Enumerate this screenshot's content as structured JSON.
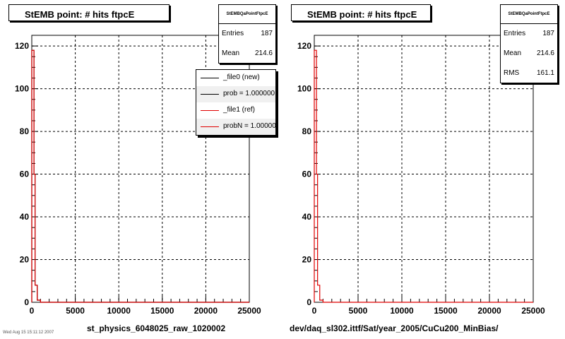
{
  "panels": [
    {
      "title": "StEMB point: # hits ftpcE",
      "stats": {
        "name": "StEMBQaPointFtpcE",
        "rows": [
          {
            "label": "Entries",
            "value": "187"
          },
          {
            "label": "Mean",
            "value": "214.6"
          }
        ]
      },
      "xtitle": "st_physics_6048025_raw_1020002",
      "legend": [
        {
          "label": "_file0 (new)",
          "color": "#000000"
        },
        {
          "label": "prob = 1.000000",
          "color": "#000000"
        },
        {
          "label": "_file1 (ref)",
          "color": "#e00000"
        },
        {
          "label": "probN = 1.000000",
          "color": "#e00000"
        }
      ]
    },
    {
      "title": "StEMB point: # hits ftpcE",
      "stats": {
        "name": "StEMBQaPointFtpcE",
        "rows": [
          {
            "label": "Entries",
            "value": "187"
          },
          {
            "label": "Mean",
            "value": "214.6"
          },
          {
            "label": "RMS",
            "value": "161.1"
          }
        ]
      },
      "xtitle": "dev/daq_sl302.ittf/Sat/year_2005/CuCu200_MinBias/"
    }
  ],
  "footer_text": "Wed Aug 15 15:11:12 2007",
  "chart_data": [
    {
      "type": "area",
      "title": "StEMB point: # hits ftpcE",
      "xlabel": "st_physics_6048025_raw_1020002",
      "ylabel": "",
      "xlim": [
        0,
        25000
      ],
      "ylim": [
        0,
        125
      ],
      "xticks": [
        0,
        5000,
        10000,
        15000,
        20000,
        25000
      ],
      "yticks": [
        0,
        20,
        40,
        60,
        80,
        100,
        120
      ],
      "grid": true,
      "series": [
        {
          "name": "_file0 (new)",
          "color": "#000000",
          "bin_edges": [
            0,
            125,
            250,
            375,
            500,
            625,
            750,
            875,
            1000,
            25000
          ],
          "values": [
            118,
            118,
            60,
            8,
            8,
            1,
            1,
            1,
            0
          ]
        },
        {
          "name": "_file1 (ref)",
          "color": "#e00000",
          "bin_edges": [
            0,
            125,
            250,
            375,
            500,
            625,
            750,
            875,
            1000,
            25000
          ],
          "values": [
            118,
            118,
            60,
            8,
            8,
            1,
            1,
            1,
            0
          ]
        }
      ]
    },
    {
      "type": "area",
      "title": "StEMB point: # hits ftpcE",
      "xlabel": "dev/daq_sl302.ittf/Sat/year_2005/CuCu200_MinBias/",
      "ylabel": "",
      "xlim": [
        0,
        25000
      ],
      "ylim": [
        0,
        125
      ],
      "xticks": [
        0,
        5000,
        10000,
        15000,
        20000,
        25000
      ],
      "yticks": [
        0,
        20,
        40,
        60,
        80,
        100,
        120
      ],
      "grid": true,
      "series": [
        {
          "color": "#e00000",
          "bin_edges": [
            0,
            125,
            250,
            375,
            500,
            625,
            750,
            875,
            1000,
            25000
          ],
          "values": [
            118,
            118,
            60,
            8,
            8,
            1,
            1,
            1,
            0
          ]
        }
      ]
    }
  ]
}
